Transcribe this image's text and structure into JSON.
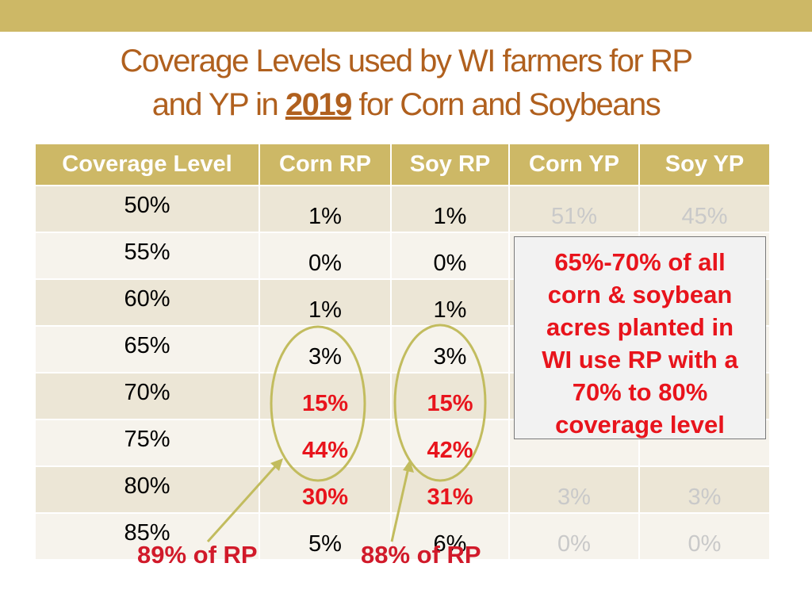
{
  "title": {
    "line1": "Coverage Levels used by WI farmers for RP",
    "line2_prefix": "and YP in ",
    "year": "2019",
    "line2_suffix": " for Corn and Soybeans"
  },
  "table": {
    "headers": [
      "Coverage Level",
      "Corn RP",
      "Soy RP",
      "Corn YP",
      "Soy YP"
    ],
    "rows": [
      {
        "level": "50%",
        "corn_rp": "1%",
        "soy_rp": "1%",
        "corn_yp": "51%",
        "soy_yp": "45%"
      },
      {
        "level": "55%",
        "corn_rp": "0%",
        "soy_rp": "0%",
        "corn_yp": "",
        "soy_yp": ""
      },
      {
        "level": "60%",
        "corn_rp": "1%",
        "soy_rp": "1%",
        "corn_yp": "",
        "soy_yp": ""
      },
      {
        "level": "65%",
        "corn_rp": "3%",
        "soy_rp": "3%",
        "corn_yp": "",
        "soy_yp": ""
      },
      {
        "level": "70%",
        "corn_rp": "15%",
        "soy_rp": "15%",
        "corn_yp": "",
        "soy_yp": ""
      },
      {
        "level": "75%",
        "corn_rp": "44%",
        "soy_rp": "42%",
        "corn_yp": "",
        "soy_yp": ""
      },
      {
        "level": "80%",
        "corn_rp": "30%",
        "soy_rp": "31%",
        "corn_yp": "3%",
        "soy_yp": "3%"
      },
      {
        "level": "85%",
        "corn_rp": "5%",
        "soy_rp": "6%",
        "corn_yp": "0%",
        "soy_yp": "0%"
      }
    ]
  },
  "callout": {
    "lines": [
      "65%-70% of all",
      "corn & soybean",
      "acres planted in",
      "WI use RP with a",
      "70% to 80%",
      "coverage level"
    ]
  },
  "annotations": {
    "corn_label": "89% of RP",
    "soy_label": "88% of RP"
  },
  "colors": {
    "accent_band": "#cdb866",
    "title_text": "#b0601e",
    "highlight_red": "#e8141c",
    "ellipse_olive": "#c2bc5e"
  }
}
